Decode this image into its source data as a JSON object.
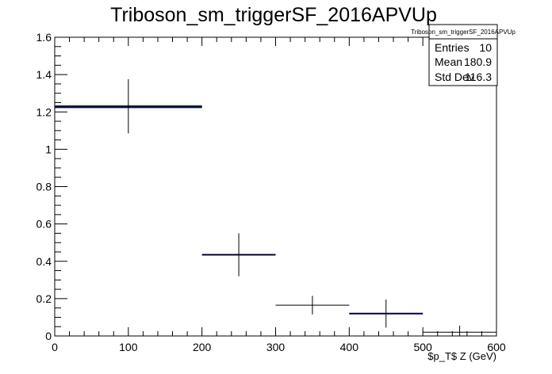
{
  "chart_data": {
    "type": "scatter",
    "title": "Triboson_sm_triggerSF_2016APVUp",
    "xlabel": "$p_T$ Z (GeV)",
    "ylabel": "",
    "xlim": [
      0,
      600
    ],
    "ylim": [
      0,
      1.6
    ],
    "x_ticks": [
      0,
      100,
      200,
      300,
      400,
      500,
      600
    ],
    "y_ticks": [
      0,
      0.2,
      0.4,
      0.6,
      0.8,
      1,
      1.2,
      1.4,
      1.6
    ],
    "x_tick_labels": [
      "0",
      "100",
      "200",
      "300",
      "400",
      "500",
      "600"
    ],
    "y_tick_labels": [
      "0",
      "0.2",
      "0.4",
      "0.6",
      "0.8",
      "1",
      "1.2",
      "1.4",
      "1.6"
    ],
    "grid": false,
    "points": [
      {
        "x": 100,
        "xlow": 0,
        "xhigh": 200,
        "y": 1.23,
        "err": 0.145
      },
      {
        "x": 250,
        "xlow": 200,
        "xhigh": 300,
        "y": 0.435,
        "err": 0.115
      },
      {
        "x": 350,
        "xlow": 300,
        "xhigh": 400,
        "y": 0.165,
        "err": 0.05
      },
      {
        "x": 450,
        "xlow": 400,
        "xhigh": 500,
        "y": 0.12,
        "err": 0.075
      },
      {
        "x": 550,
        "xlow": 500,
        "xhigh": 600,
        "y": 0.02,
        "err": 0.035
      }
    ],
    "model_lines": [
      {
        "color": "#00aa00",
        "segments": [
          {
            "x0": 0,
            "x1": 200,
            "y": 1.232
          }
        ]
      },
      {
        "color": "#00008b",
        "segments": [
          {
            "x0": 0,
            "x1": 200,
            "y": 1.225
          },
          {
            "x0": 200,
            "x1": 300,
            "y": 0.435
          },
          {
            "x0": 400,
            "x1": 500,
            "y": 0.12
          }
        ]
      }
    ],
    "stats_box": {
      "title": "Triboson_sm_triggerSF_2016APVUp",
      "rows": [
        {
          "label": "Entries",
          "value": "10"
        },
        {
          "label": "Mean",
          "value": "180.9"
        },
        {
          "label": "Std Dev",
          "value": "116.3"
        }
      ],
      "placement": "top-right"
    }
  }
}
